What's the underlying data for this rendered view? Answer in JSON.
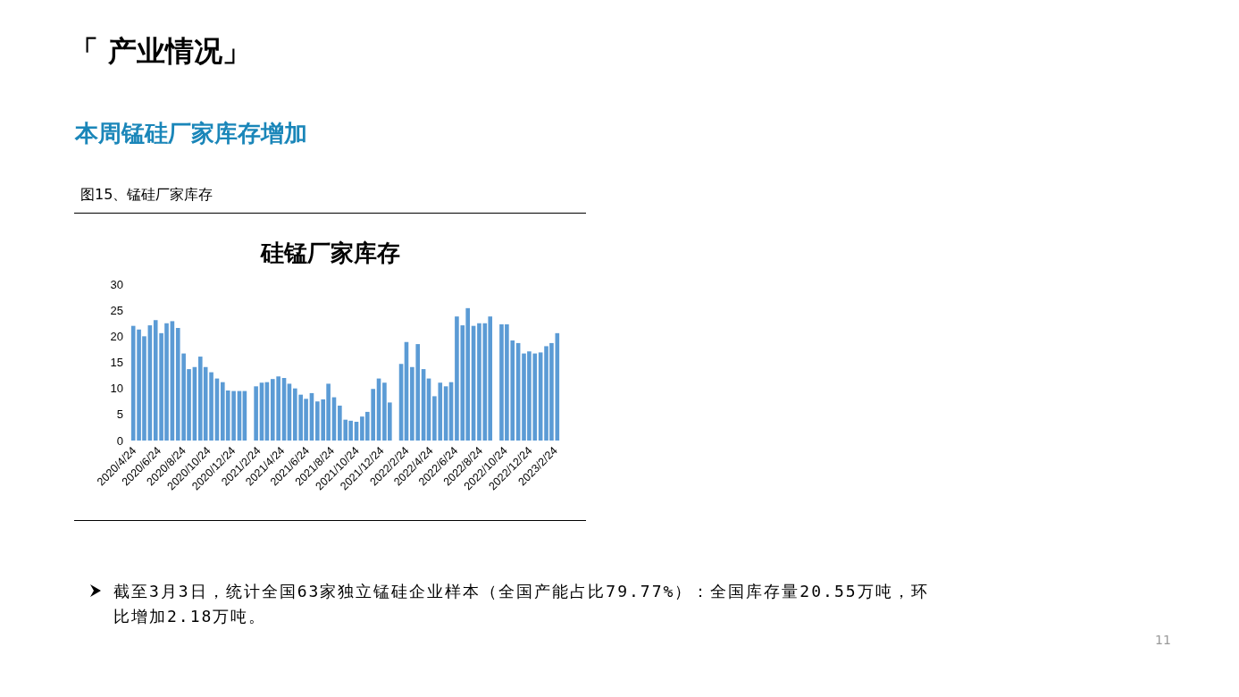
{
  "chart_data": {
    "type": "bar",
    "title": "硅锰厂家库存",
    "annotations": [
      "「 产业情况」",
      "本周锰硅厂家库存增加",
      "图15、锰硅厂家库存",
      "截至3月3日，统计全国63家独立锰硅企业样本（全国产能占比79.77%）：全国库存量20.55万吨，环比增加2.18万吨。",
      "11"
    ],
    "x": [
      "2020-04-24",
      "2020-05-08",
      "2020-05-21",
      "2020-06-04",
      "2020-06-18",
      "2020-07-02",
      "2020-07-15",
      "2020-07-29",
      "2020-08-12",
      "2020-08-26",
      "2020-09-08",
      "2020-09-22",
      "2020-10-06",
      "2020-10-19",
      "2020-11-02",
      "2020-11-16",
      "2020-11-30",
      "2020-12-13",
      "2020-12-27",
      "2021-01-10",
      "2021-01-23",
      "2021-02-06",
      "2021-02-20",
      "2021-03-06",
      "2021-03-19",
      "2021-04-02",
      "2021-04-16",
      "2021-04-30",
      "2021-05-13",
      "2021-05-27",
      "2021-06-10",
      "2021-06-23",
      "2021-07-07",
      "2021-07-21",
      "2021-08-04",
      "2021-08-17",
      "2021-08-31",
      "2021-09-14",
      "2021-09-28",
      "2021-10-11",
      "2021-10-25",
      "2021-11-08",
      "2021-11-21",
      "2021-12-05",
      "2021-12-19",
      "2022-01-02",
      "2022-01-15",
      "2022-01-29",
      "2022-02-12",
      "2022-02-25",
      "2022-03-11",
      "2022-03-25",
      "2022-04-08",
      "2022-04-21",
      "2022-05-05",
      "2022-05-19",
      "2022-06-02",
      "2022-06-15",
      "2022-06-29",
      "2022-07-13",
      "2022-07-26",
      "2022-08-09",
      "2022-08-23",
      "2022-09-06",
      "2022-09-19",
      "2022-10-03",
      "2022-10-17",
      "2022-10-30",
      "2022-11-13",
      "2022-11-27",
      "2022-12-11",
      "2022-12-24",
      "2023-01-07",
      "2023-01-21",
      "2023-02-04",
      "2023-02-17",
      "2023-03-03"
    ],
    "values": [
      22.0,
      21.3,
      20.0,
      22.1,
      23.1,
      20.6,
      22.5,
      22.9,
      21.6,
      16.7,
      13.7,
      14.1,
      16.1,
      14.1,
      13.1,
      11.9,
      11.2,
      9.6,
      9.5,
      9.5,
      9.5,
      null,
      10.4,
      11.1,
      11.2,
      11.8,
      12.3,
      12.0,
      10.9,
      10.0,
      8.8,
      8.0,
      9.1,
      7.5,
      7.9,
      10.9,
      8.3,
      6.7,
      4.0,
      3.8,
      3.6,
      4.6,
      5.5,
      9.9,
      11.9,
      11.1,
      7.3,
      null,
      14.7,
      18.9,
      14.1,
      18.5,
      13.7,
      11.9,
      8.5,
      11.1,
      10.4,
      11.2,
      23.8,
      22.1,
      25.4,
      22.0,
      22.5,
      22.5,
      23.8,
      null,
      22.3,
      22.3,
      19.2,
      18.7,
      16.7,
      17.1,
      16.7,
      16.9,
      18.1,
      18.7,
      20.6
    ],
    "color": "#5b9bd5",
    "xlim": [
      "2020-04-17",
      "2023-03-10"
    ],
    "xticks": [
      {
        "value": "2020-04-24",
        "label": "2020/4/24"
      },
      {
        "value": "2020-06-24",
        "label": "2020/6/24"
      },
      {
        "value": "2020-08-24",
        "label": "2020/8/24"
      },
      {
        "value": "2020-10-24",
        "label": "2020/10/24"
      },
      {
        "value": "2020-12-24",
        "label": "2020/12/24"
      },
      {
        "value": "2021-02-24",
        "label": "2021/2/24"
      },
      {
        "value": "2021-04-24",
        "label": "2021/4/24"
      },
      {
        "value": "2021-06-24",
        "label": "2021/6/24"
      },
      {
        "value": "2021-08-24",
        "label": "2021/8/24"
      },
      {
        "value": "2021-10-24",
        "label": "2021/10/24"
      },
      {
        "value": "2021-12-24",
        "label": "2021/12/24"
      },
      {
        "value": "2022-02-24",
        "label": "2022/2/24"
      },
      {
        "value": "2022-04-24",
        "label": "2022/4/24"
      },
      {
        "value": "2022-06-24",
        "label": "2022/6/24"
      },
      {
        "value": "2022-08-24",
        "label": "2022/8/24"
      },
      {
        "value": "2022-10-24",
        "label": "2022/10/24"
      },
      {
        "value": "2022-12-24",
        "label": "2022/12/24"
      },
      {
        "value": "2023-02-24",
        "label": "2023/2/24"
      }
    ],
    "ylim": [
      0,
      30
    ],
    "yticks": [
      0,
      5,
      10,
      15,
      20,
      25,
      30
    ],
    "grid": false
  }
}
